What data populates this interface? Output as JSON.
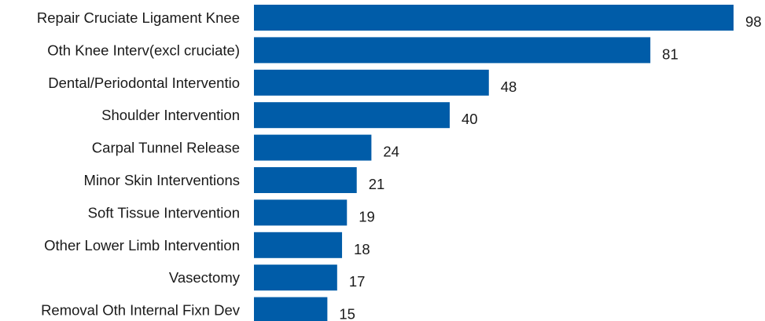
{
  "chart_data": {
    "type": "bar",
    "orientation": "horizontal",
    "categories": [
      "Repair Cruciate Ligament Knee",
      "Oth Knee Interv(excl cruciate)",
      "Dental/Periodontal Interventio",
      "Shoulder Intervention",
      "Carpal Tunnel Release",
      "Minor Skin Interventions",
      "Soft Tissue Intervention",
      "Other Lower Limb Intervention",
      "Vasectomy",
      "Removal Oth Internal Fixn Dev"
    ],
    "values": [
      98,
      81,
      48,
      40,
      24,
      21,
      19,
      18,
      17,
      15
    ],
    "title": "",
    "xlabel": "",
    "ylabel": "",
    "xlim": [
      0,
      98
    ],
    "grid": false,
    "legend": "none",
    "data_labels": true,
    "bar_color": "#005ca8"
  }
}
